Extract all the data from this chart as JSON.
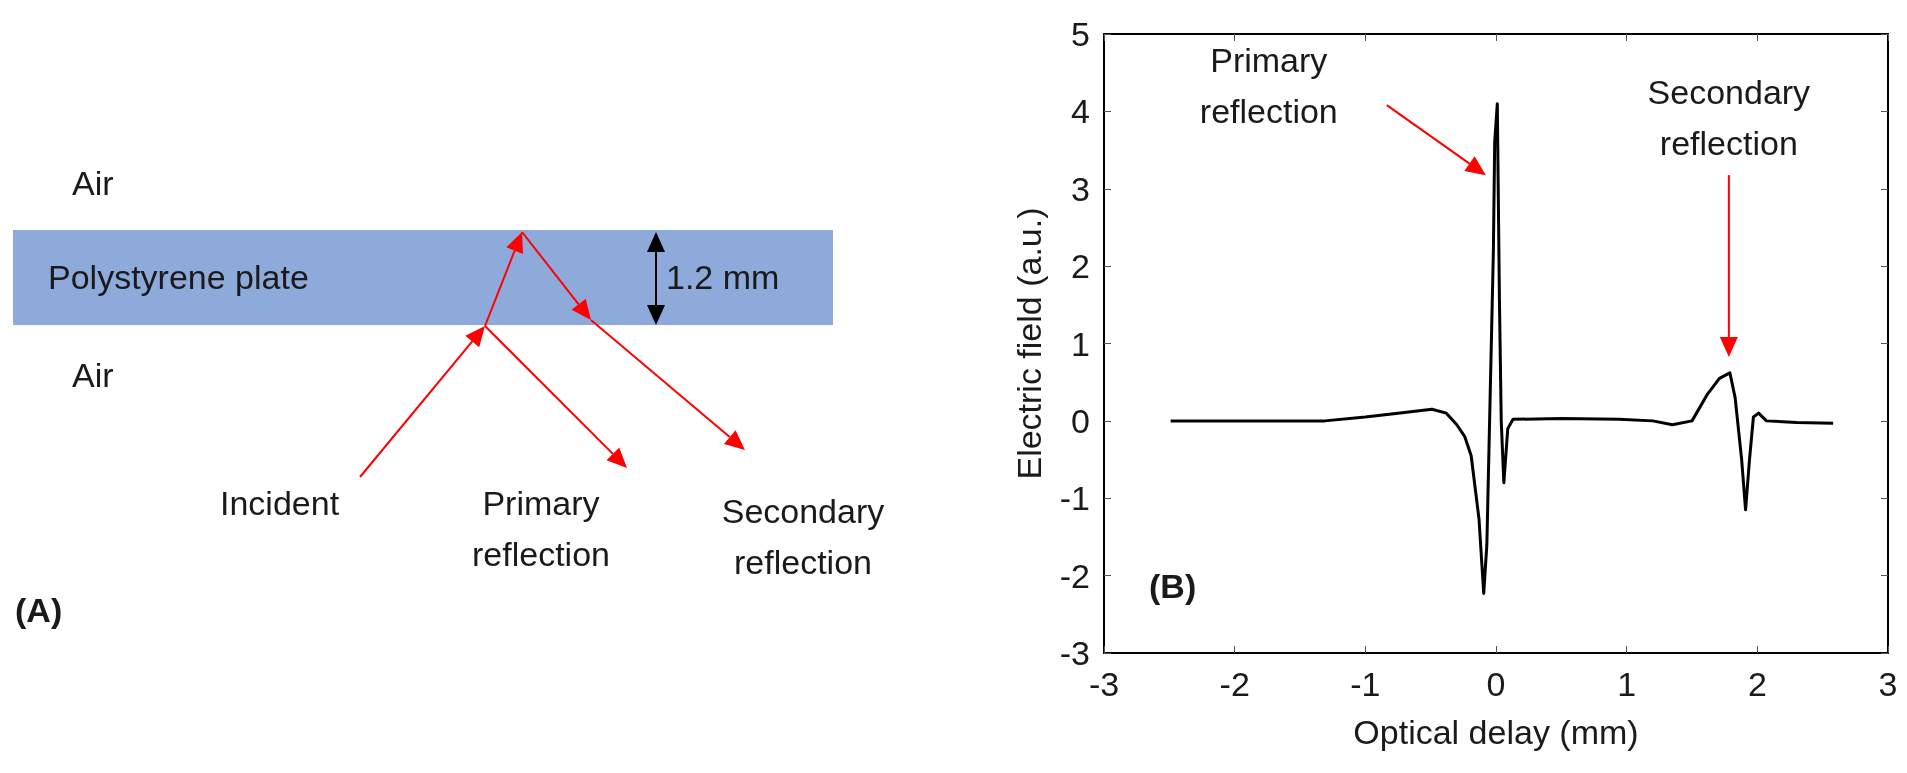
{
  "chart_data": [
    {
      "type": "other",
      "annotations": [
        "Air",
        "Polystyrene plate",
        "1.2 mm",
        "Air",
        "Incident",
        "Primary reflection",
        "Secondary reflection",
        "(A)"
      ]
    },
    {
      "type": "line",
      "xlabel": "Optical delay (mm)",
      "ylabel": "Electric field (a.u.)",
      "xlim": [
        -3,
        3
      ],
      "xticks": [
        -3,
        -2,
        -1,
        0,
        1,
        2,
        3
      ],
      "ylim": [
        -3,
        5
      ],
      "yticks": [
        -3,
        -2,
        -1,
        0,
        1,
        2,
        3,
        4,
        5
      ],
      "series": [
        {
          "color": "#000000",
          "x": [
            -2.49,
            -1.8,
            -1.31,
            -1.0,
            -0.75,
            -0.49,
            -0.38,
            -0.3,
            -0.24,
            -0.19,
            -0.13,
            -0.094,
            -0.07,
            -0.045,
            -0.02,
            -0.01,
            0.01,
            0.026,
            0.04,
            0.06,
            0.09,
            0.13,
            0.5,
            0.94,
            1.2,
            1.35,
            1.5,
            1.62,
            1.71,
            1.79,
            1.83,
            1.88,
            1.91,
            1.94,
            1.97,
            2.01,
            2.07,
            2.3,
            2.58
          ],
          "values": [
            0,
            0,
            0,
            0.05,
            0.1,
            0.15,
            0.1,
            -0.05,
            -0.2,
            -0.45,
            -1.27,
            -2.23,
            -1.6,
            0.3,
            2.2,
            3.6,
            4.1,
            1.6,
            0,
            -0.8,
            -0.1,
            0.02,
            0.03,
            0.02,
            0,
            -0.05,
            0,
            0.35,
            0.55,
            0.62,
            0.3,
            -0.5,
            -1.15,
            -0.5,
            0.05,
            0.1,
            0,
            -0.02,
            -0.03
          ]
        }
      ],
      "annotations": [
        "Primary reflection",
        "Secondary reflection",
        "(B)"
      ]
    }
  ]
}
